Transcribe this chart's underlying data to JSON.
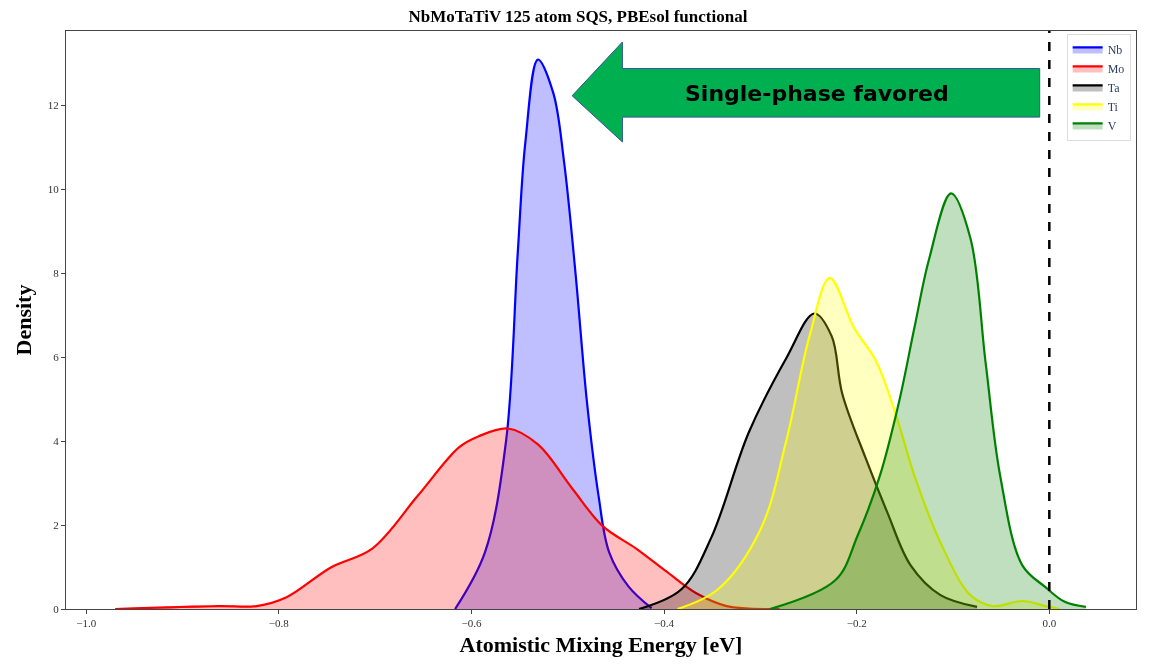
{
  "chart_data": {
    "type": "area",
    "title": "NbMoTaTiV 125 atom SQS, PBEsol functional",
    "xlabel": "Atomistic Mixing Energy [eV]",
    "ylabel": "Density",
    "annotations": [
      "Single-phase favored"
    ],
    "xlim": [
      -1.021,
      0.09
    ],
    "ylim": [
      0,
      13.77
    ],
    "xticks": [
      {
        "value": -1.0,
        "label": "−1.0"
      },
      {
        "value": -0.8,
        "label": "−0.8"
      },
      {
        "value": -0.6,
        "label": "−0.6"
      },
      {
        "value": -0.4,
        "label": "−0.4"
      },
      {
        "value": -0.2,
        "label": "−0.2"
      },
      {
        "value": 0.0,
        "label": "0.0"
      }
    ],
    "yticks": [
      0,
      2,
      4,
      6,
      8,
      10,
      12
    ],
    "legend": "top right",
    "ref_lines": [
      {
        "axis": "x",
        "value": 0,
        "color": "#000000",
        "line_style": "dashed"
      }
    ],
    "series": [
      {
        "name": "Nb",
        "color": "#0000ff",
        "x": [
          -0.617,
          -0.586,
          -0.564,
          -0.552,
          -0.544,
          -0.531,
          -0.515,
          -0.504,
          -0.492,
          -0.48,
          -0.468,
          -0.457,
          -0.437,
          -0.413
        ],
        "values": [
          0,
          1.35,
          4.02,
          8.46,
          11.13,
          13.09,
          12.29,
          10.68,
          8.01,
          4.91,
          2.69,
          1.35,
          0.54,
          0.02
        ]
      },
      {
        "name": "Mo",
        "color": "#ff0000",
        "x": [
          -0.97,
          -0.863,
          -0.823,
          -0.792,
          -0.746,
          -0.703,
          -0.656,
          -0.613,
          -0.593,
          -0.562,
          -0.531,
          -0.495,
          -0.464,
          -0.429,
          -0.398,
          -0.367,
          -0.335,
          -0.28
        ],
        "values": [
          0,
          0.07,
          0.07,
          0.28,
          0.99,
          1.44,
          2.69,
          3.85,
          4.11,
          4.3,
          3.92,
          2.86,
          1.98,
          1.44,
          0.9,
          0.38,
          0.07,
          0
        ]
      },
      {
        "name": "Ta",
        "color": "#000000",
        "x": [
          -0.426,
          -0.382,
          -0.351,
          -0.312,
          -0.273,
          -0.244,
          -0.226,
          -0.215,
          -0.191,
          -0.168,
          -0.144,
          -0.113,
          -0.075
        ],
        "values": [
          0,
          0.47,
          1.7,
          4.21,
          5.98,
          7.04,
          6.5,
          5.13,
          3.61,
          2.29,
          1.04,
          0.33,
          0.05
        ]
      },
      {
        "name": "Ti",
        "color": "#ffff00",
        "x": [
          -0.386,
          -0.344,
          -0.3,
          -0.273,
          -0.249,
          -0.228,
          -0.203,
          -0.18,
          -0.16,
          -0.14,
          -0.113,
          -0.082,
          -0.059,
          -0.028,
          -0.004,
          0.011
        ],
        "values": [
          0,
          0.47,
          1.89,
          4.02,
          6.5,
          7.89,
          6.71,
          5.91,
          4.68,
          3.17,
          1.58,
          0.33,
          0.07,
          0.19,
          0.07,
          0
        ]
      },
      {
        "name": "V",
        "color": "#008000",
        "x": [
          -0.29,
          -0.222,
          -0.199,
          -0.176,
          -0.156,
          -0.14,
          -0.125,
          -0.102,
          -0.082,
          -0.066,
          -0.051,
          -0.028,
          -0.004,
          0.016,
          0.038
        ],
        "values": [
          0,
          0.69,
          1.75,
          3.17,
          4.94,
          6.71,
          8.32,
          9.9,
          8.84,
          5.84,
          3.17,
          1.04,
          0.52,
          0.17,
          0.05
        ]
      }
    ]
  }
}
